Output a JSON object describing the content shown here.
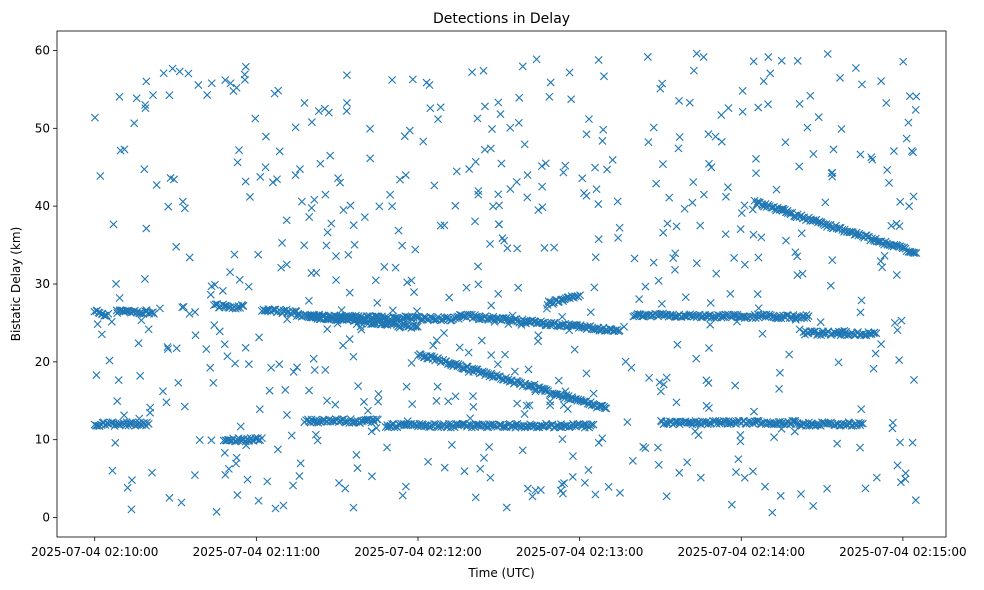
{
  "chart_data": {
    "type": "scatter",
    "title": "Detections in Delay",
    "xlabel": "Time (UTC)",
    "ylabel": "Bistatic Delay (km)",
    "x_unit": "seconds since 2025-07-04 02:10:00 UTC",
    "xlim": [
      -14,
      316
    ],
    "ylim": [
      -2.5,
      62.5
    ],
    "x_ticks": [
      {
        "value": 0,
        "label": "2025-07-04 02:10:00"
      },
      {
        "value": 60,
        "label": "2025-07-04 02:11:00"
      },
      {
        "value": 120,
        "label": "2025-07-04 02:12:00"
      },
      {
        "value": 180,
        "label": "2025-07-04 02:13:00"
      },
      {
        "value": 240,
        "label": "2025-07-04 02:14:00"
      },
      {
        "value": 300,
        "label": "2025-07-04 02:15:00"
      }
    ],
    "y_ticks": [
      {
        "value": 0,
        "label": "0"
      },
      {
        "value": 10,
        "label": "10"
      },
      {
        "value": 20,
        "label": "20"
      },
      {
        "value": 30,
        "label": "30"
      },
      {
        "value": 40,
        "label": "40"
      },
      {
        "value": 50,
        "label": "50"
      },
      {
        "value": 60,
        "label": "60"
      }
    ],
    "marker": "x",
    "color": "#1f77b4",
    "grid": false,
    "series": [
      {
        "name": "track-12km",
        "segments": [
          {
            "t": [
              0,
              20
            ],
            "d": [
              12.0,
              12.0
            ]
          },
          {
            "t": [
              48,
              62
            ],
            "d": [
              10.0,
              10.0
            ]
          },
          {
            "t": [
              78,
              105
            ],
            "d": [
              12.4,
              12.4
            ]
          },
          {
            "t": [
              108,
              185
            ],
            "d": [
              11.8,
              11.8
            ]
          },
          {
            "t": [
              210,
              260
            ],
            "d": [
              12.2,
              12.2
            ]
          },
          {
            "t": [
              260,
              285
            ],
            "d": [
              12.0,
              12.0
            ]
          }
        ]
      },
      {
        "name": "track-26km",
        "segments": [
          {
            "t": [
              0,
              5
            ],
            "d": [
              26.5,
              26.0
            ]
          },
          {
            "t": [
              8,
              22
            ],
            "d": [
              26.4,
              26.4
            ]
          },
          {
            "t": [
              45,
              55
            ],
            "d": [
              27.2,
              27.0
            ]
          },
          {
            "t": [
              62,
              75
            ],
            "d": [
              26.6,
              26.4
            ]
          },
          {
            "t": [
              80,
              135
            ],
            "d": [
              25.8,
              25.5
            ]
          },
          {
            "t": [
              135,
              195
            ],
            "d": [
              26.0,
              24.0
            ]
          },
          {
            "t": [
              168,
              180
            ],
            "d": [
              27.5,
              28.5
            ]
          },
          {
            "t": [
              200,
              265
            ],
            "d": [
              26.0,
              25.8
            ]
          },
          {
            "t": [
              263,
              290
            ],
            "d": [
              23.7,
              23.6
            ]
          }
        ]
      },
      {
        "name": "track-25km",
        "segments": [
          {
            "t": [
              75,
              120
            ],
            "d": [
              26.0,
              24.5
            ]
          }
        ]
      },
      {
        "name": "track-descending",
        "segments": [
          {
            "t": [
              120,
              190
            ],
            "d": [
              21.0,
              14.0
            ]
          }
        ]
      },
      {
        "name": "track-40km",
        "segments": [
          {
            "t": [
              245,
              305
            ],
            "d": [
              40.5,
              34.0
            ]
          }
        ]
      },
      {
        "name": "clutter",
        "count": 620,
        "t_range": [
          0,
          305
        ],
        "d_range": [
          0.5,
          59.8
        ]
      }
    ]
  }
}
